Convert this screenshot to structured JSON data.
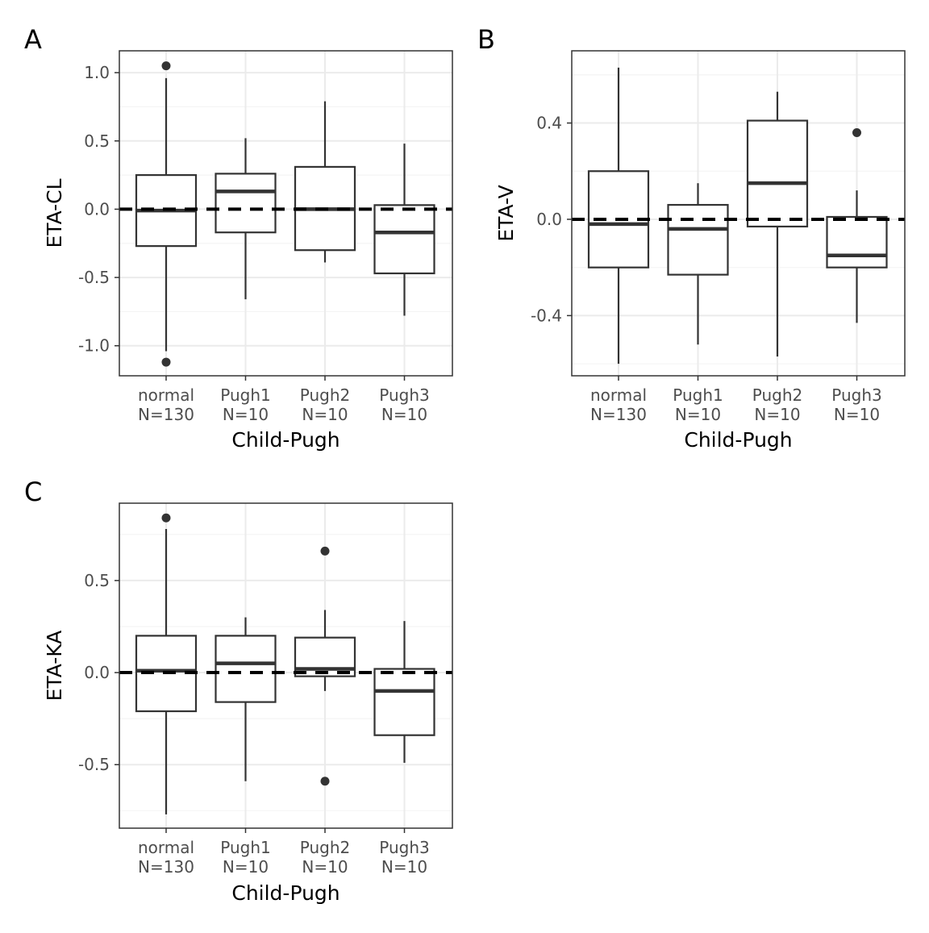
{
  "chart_data": [
    {
      "type": "box",
      "panel_label": "A",
      "xlabel": "Child-Pugh",
      "ylabel": "ETA-CL",
      "ylim": [
        -1.22,
        1.16
      ],
      "yticks": [
        "1.0",
        "0.5",
        "0.0",
        "-0.5",
        "-1.0"
      ],
      "ytick_values": [
        1.0,
        0.5,
        0.0,
        -0.5,
        -1.0
      ],
      "minor_gridlines": [
        0.75,
        0.25,
        -0.25,
        -0.75
      ],
      "grid": true,
      "reference_line": 0.0,
      "categories": [
        "normal",
        "Pugh1",
        "Pugh2",
        "Pugh3"
      ],
      "category_counts": [
        "N=130",
        "N=10",
        "N=10",
        "N=10"
      ],
      "boxes": [
        {
          "q1": -0.27,
          "median": -0.01,
          "q3": 0.25,
          "whisker_low": -1.04,
          "whisker_high": 0.96,
          "outliers": [
            1.05,
            -1.12
          ]
        },
        {
          "q1": -0.17,
          "median": 0.13,
          "q3": 0.26,
          "whisker_low": -0.66,
          "whisker_high": 0.52,
          "outliers": []
        },
        {
          "q1": -0.3,
          "median": 0.0,
          "q3": 0.31,
          "whisker_low": -0.39,
          "whisker_high": 0.79,
          "outliers": []
        },
        {
          "q1": -0.47,
          "median": -0.17,
          "q3": 0.03,
          "whisker_low": -0.78,
          "whisker_high": 0.48,
          "outliers": []
        }
      ]
    },
    {
      "type": "box",
      "panel_label": "B",
      "xlabel": "Child-Pugh",
      "ylabel": "ETA-V",
      "ylim": [
        -0.65,
        0.7
      ],
      "yticks": [
        "0.4",
        "0.0",
        "-0.4"
      ],
      "ytick_values": [
        0.4,
        0.0,
        -0.4
      ],
      "minor_gridlines": [
        0.6,
        0.2,
        -0.2,
        -0.6
      ],
      "grid": true,
      "reference_line": 0.0,
      "categories": [
        "normal",
        "Pugh1",
        "Pugh2",
        "Pugh3"
      ],
      "category_counts": [
        "N=130",
        "N=10",
        "N=10",
        "N=10"
      ],
      "boxes": [
        {
          "q1": -0.2,
          "median": -0.02,
          "q3": 0.2,
          "whisker_low": -0.6,
          "whisker_high": 0.63,
          "outliers": []
        },
        {
          "q1": -0.23,
          "median": -0.04,
          "q3": 0.06,
          "whisker_low": -0.52,
          "whisker_high": 0.15,
          "outliers": []
        },
        {
          "q1": -0.03,
          "median": 0.15,
          "q3": 0.41,
          "whisker_low": -0.57,
          "whisker_high": 0.53,
          "outliers": []
        },
        {
          "q1": -0.2,
          "median": -0.15,
          "q3": 0.01,
          "whisker_low": -0.43,
          "whisker_high": 0.12,
          "outliers": [
            0.36
          ]
        }
      ]
    },
    {
      "type": "box",
      "panel_label": "C",
      "xlabel": "Child-Pugh",
      "ylabel": "ETA-KA",
      "ylim": [
        -0.845,
        0.92
      ],
      "yticks": [
        "0.5",
        "0.0",
        "-0.5"
      ],
      "ytick_values": [
        0.5,
        0.0,
        -0.5
      ],
      "minor_gridlines": [
        0.75,
        0.25,
        -0.25,
        -0.75
      ],
      "grid": true,
      "reference_line": 0.0,
      "categories": [
        "normal",
        "Pugh1",
        "Pugh2",
        "Pugh3"
      ],
      "category_counts": [
        "N=130",
        "N=10",
        "N=10",
        "N=10"
      ],
      "boxes": [
        {
          "q1": -0.21,
          "median": 0.01,
          "q3": 0.2,
          "whisker_low": -0.77,
          "whisker_high": 0.78,
          "outliers": [
            0.84
          ]
        },
        {
          "q1": -0.16,
          "median": 0.05,
          "q3": 0.2,
          "whisker_low": -0.59,
          "whisker_high": 0.3,
          "outliers": []
        },
        {
          "q1": -0.02,
          "median": 0.02,
          "q3": 0.19,
          "whisker_low": -0.1,
          "whisker_high": 0.34,
          "outliers": [
            0.66,
            -0.59
          ]
        },
        {
          "q1": -0.34,
          "median": -0.1,
          "q3": 0.02,
          "whisker_low": -0.49,
          "whisker_high": 0.28,
          "outliers": []
        }
      ]
    }
  ]
}
